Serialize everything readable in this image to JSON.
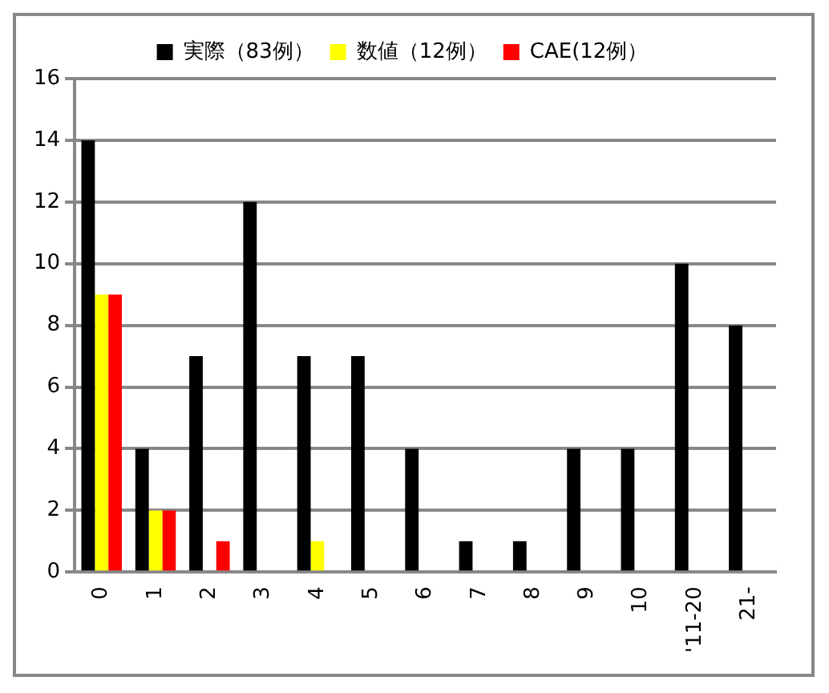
{
  "chart_data": {
    "type": "bar",
    "categories": [
      "0",
      "1",
      "2",
      "3",
      "4",
      "5",
      "6",
      "7",
      "8",
      "9",
      "10",
      "'11-20",
      "21-"
    ],
    "series": [
      {
        "name": "実際（83例）",
        "color": "#000000",
        "values": [
          14,
          4,
          7,
          12,
          7,
          7,
          4,
          1,
          1,
          4,
          4,
          10,
          8
        ]
      },
      {
        "name": "数値（12例）",
        "color": "#ffff00",
        "values": [
          9,
          2,
          0,
          0,
          1,
          0,
          0,
          0,
          0,
          0,
          0,
          0,
          0
        ]
      },
      {
        "name": "CAE(12例）",
        "color": "#ff0000",
        "values": [
          9,
          2,
          1,
          0,
          0,
          0,
          0,
          0,
          0,
          0,
          0,
          0,
          0
        ]
      }
    ],
    "ylim": [
      0,
      16
    ],
    "yticks": [
      0,
      2,
      4,
      6,
      8,
      10,
      12,
      14,
      16
    ],
    "grid": "y",
    "legend": "top"
  }
}
